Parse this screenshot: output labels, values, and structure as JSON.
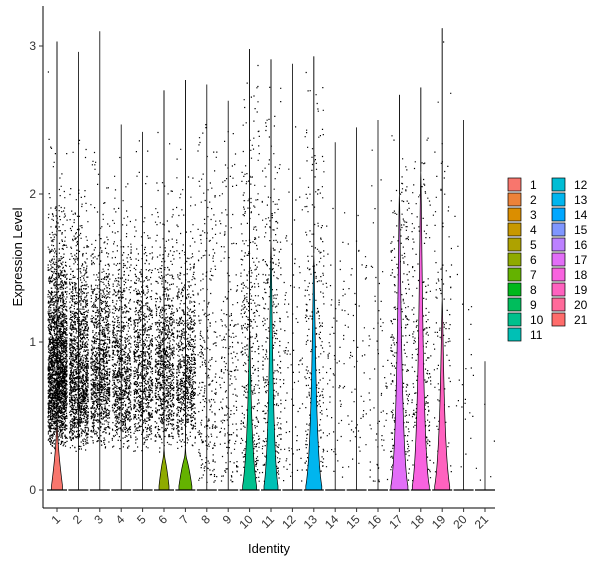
{
  "chart_data": {
    "type": "violin",
    "xlabel": "Identity",
    "ylabel": "Expression Level",
    "ylim": [
      -0.12,
      3.13
    ],
    "yticks": [
      0,
      1,
      2,
      3
    ],
    "grid": false,
    "legend_position": "right",
    "legend_columns": 2,
    "categories": [
      "1",
      "2",
      "3",
      "4",
      "5",
      "6",
      "7",
      "8",
      "9",
      "10",
      "11",
      "12",
      "13",
      "14",
      "15",
      "16",
      "17",
      "18",
      "19",
      "20",
      "21"
    ],
    "colors": [
      "#F8766D",
      "#EC8239",
      "#DB8E00",
      "#C79800",
      "#AEA200",
      "#8FAA00",
      "#64B200",
      "#00B81B",
      "#00BD5C",
      "#00C08D",
      "#00C0B5",
      "#00BDD4",
      "#00B5EE",
      "#00A7FF",
      "#7F96FF",
      "#BC81FF",
      "#E26EF7",
      "#F863DF",
      "#FF62BF",
      "#FF6A9A",
      "#FF6C6B"
    ],
    "series": [
      {
        "name": "1",
        "zero_width": 0.55,
        "bulk_max": 0.5,
        "max": 3.03,
        "points": 2400
      },
      {
        "name": "2",
        "zero_width": 0.0,
        "bulk_max": 0,
        "max": 2.96,
        "points": 1500
      },
      {
        "name": "3",
        "zero_width": 0.0,
        "bulk_max": 0,
        "max": 3.1,
        "points": 1100
      },
      {
        "name": "4",
        "zero_width": 0.0,
        "bulk_max": 0,
        "max": 2.47,
        "points": 900
      },
      {
        "name": "5",
        "zero_width": 0.0,
        "bulk_max": 0,
        "max": 2.42,
        "points": 850
      },
      {
        "name": "6",
        "zero_width": 0.5,
        "bulk_max": 0.3,
        "max": 2.7,
        "points": 900
      },
      {
        "name": "7",
        "zero_width": 0.65,
        "bulk_max": 0.3,
        "max": 2.77,
        "points": 800
      },
      {
        "name": "8",
        "zero_width": 0.0,
        "bulk_max": 0,
        "max": 2.74,
        "points": 300
      },
      {
        "name": "9",
        "zero_width": 0.0,
        "bulk_max": 0,
        "max": 2.63,
        "points": 220
      },
      {
        "name": "10",
        "zero_width": 0.7,
        "bulk_max": 1.1,
        "max": 2.98,
        "points": 420
      },
      {
        "name": "11",
        "zero_width": 0.7,
        "bulk_max": 1.7,
        "max": 2.91,
        "points": 360
      },
      {
        "name": "12",
        "zero_width": 0.0,
        "bulk_max": 0,
        "max": 2.88,
        "points": 90
      },
      {
        "name": "13",
        "zero_width": 0.8,
        "bulk_max": 1.6,
        "max": 2.93,
        "points": 300
      },
      {
        "name": "14",
        "zero_width": 0.0,
        "bulk_max": 0,
        "max": 2.35,
        "points": 80
      },
      {
        "name": "15",
        "zero_width": 0.0,
        "bulk_max": 0,
        "max": 2.45,
        "points": 60
      },
      {
        "name": "16",
        "zero_width": 0.0,
        "bulk_max": 0,
        "max": 2.5,
        "points": 70
      },
      {
        "name": "17",
        "zero_width": 0.85,
        "bulk_max": 2.0,
        "max": 2.67,
        "points": 320
      },
      {
        "name": "18",
        "zero_width": 0.85,
        "bulk_max": 2.15,
        "max": 2.72,
        "points": 260
      },
      {
        "name": "19",
        "zero_width": 0.75,
        "bulk_max": 1.3,
        "max": 3.12,
        "points": 120
      },
      {
        "name": "20",
        "zero_width": 0.0,
        "bulk_max": 0,
        "max": 2.5,
        "points": 25
      },
      {
        "name": "21",
        "zero_width": 0.0,
        "bulk_max": 0,
        "max": 0.87,
        "points": 5
      }
    ]
  }
}
